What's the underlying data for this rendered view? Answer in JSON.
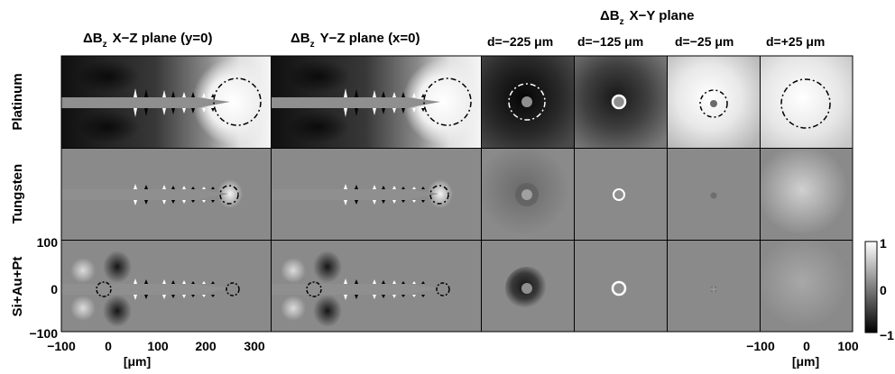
{
  "column_titles": {
    "xz": {
      "delta": "ΔB",
      "sub": "z",
      "rest": "X−Z plane (y=0)"
    },
    "yz": {
      "delta": "ΔB",
      "sub": "z",
      "rest": "Y−Z plane (x=0)"
    },
    "xy": {
      "delta": "ΔB",
      "sub": "z",
      "rest": "X−Y plane"
    }
  },
  "depth_labels": [
    "d=−225 μm",
    "d=−125 μm",
    "d=−25 μm",
    "d=+25 μm"
  ],
  "row_labels": [
    "Platinum",
    "Tungsten",
    "Si+Au+Pt"
  ],
  "left_axis": {
    "y_ticks": [
      "100",
      "0",
      "−100"
    ],
    "x_ticks": [
      "−100",
      "0",
      "100",
      "200",
      "300"
    ],
    "x_unit": "[μm]"
  },
  "right_axis": {
    "x_ticks": [
      "−100",
      "0",
      "100"
    ],
    "x_unit": "[μm]"
  },
  "colorbar": {
    "ticks": [
      "1",
      "0",
      "−1"
    ],
    "range": [
      -1,
      1
    ],
    "colormap": "gray"
  },
  "panel_background": "#8a8a8a",
  "tip_color": "#8f8f8f"
}
